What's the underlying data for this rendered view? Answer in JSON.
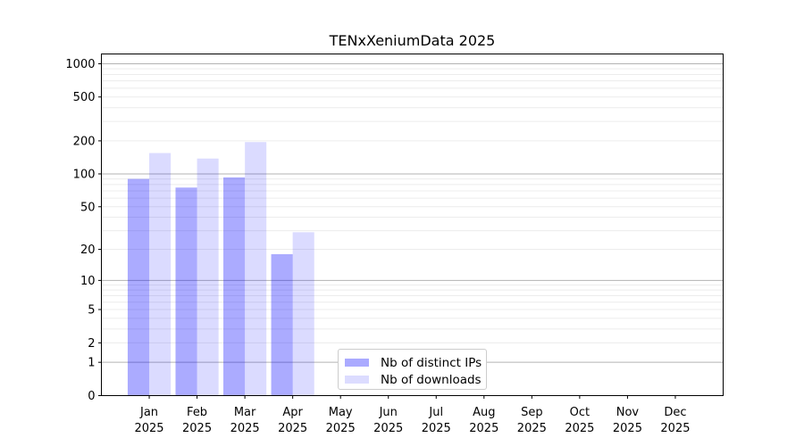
{
  "chart_data": {
    "type": "bar",
    "title": "TENxXeniumData 2025",
    "categories": [
      "Jan",
      "Feb",
      "Mar",
      "Apr",
      "May",
      "Jun",
      "Jul",
      "Aug",
      "Sep",
      "Oct",
      "Nov",
      "Dec"
    ],
    "category_year": "2025",
    "series": [
      {
        "name": "Nb of distinct IPs",
        "color": "#0000ff",
        "alpha": 0.33,
        "legend_hex": "#aaaaff",
        "values": [
          90,
          75,
          93,
          18,
          0,
          0,
          0,
          0,
          0,
          0,
          0,
          0
        ]
      },
      {
        "name": "Nb of downloads",
        "color": "#0000ff",
        "alpha": 0.14,
        "legend_hex": "#dcdcff",
        "values": [
          155,
          138,
          195,
          29,
          0,
          0,
          0,
          0,
          0,
          0,
          0,
          0
        ]
      }
    ],
    "yscale": "log1p",
    "ylim": [
      0,
      1235
    ],
    "yticks": [
      0,
      1,
      2,
      5,
      10,
      20,
      50,
      100,
      200,
      500,
      1000
    ],
    "grid": {
      "major_lines": [
        1,
        10,
        100,
        1000
      ],
      "minor_lines": [
        2,
        3,
        4,
        5,
        6,
        7,
        8,
        9,
        20,
        30,
        40,
        50,
        60,
        70,
        80,
        90,
        200,
        300,
        400,
        500,
        600,
        700,
        800,
        900
      ]
    },
    "legend_position": "bottom-center"
  },
  "colors": {
    "major_grid": "#b3b3b3",
    "minor_grid": "#ececec",
    "spine": "#000000",
    "tick_text": "#000000",
    "legend_border": "#cccccc",
    "background": "#ffffff"
  }
}
